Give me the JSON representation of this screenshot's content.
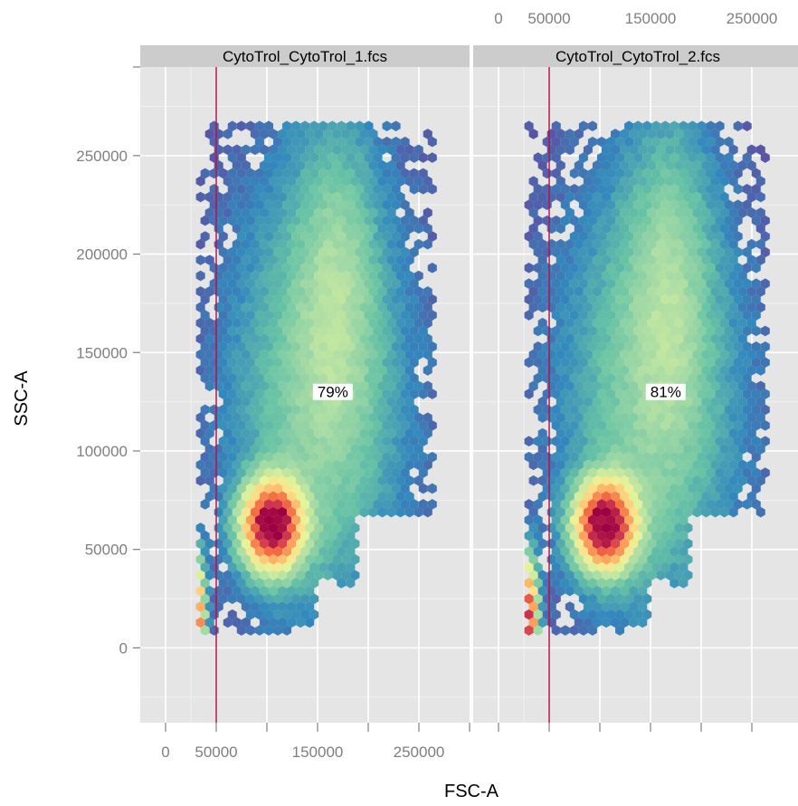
{
  "chart_data": {
    "type": "heatmap",
    "subtype": "hexbin",
    "x": "FSC-A",
    "xlabel": "FSC-A",
    "ylabel": "SSC-A",
    "xlim": [
      -25000,
      300000
    ],
    "ylim": [
      -38000,
      295000
    ],
    "xticks": [
      0,
      50000,
      150000,
      250000
    ],
    "xtick_labels": [
      "0",
      "50000",
      "150000",
      "250000"
    ],
    "yticks": [
      0,
      50000,
      100000,
      150000,
      200000,
      250000
    ],
    "ytick_labels": [
      "0",
      "50000",
      "100000",
      "150000",
      "200000",
      "250000"
    ],
    "grid": true,
    "colorscale": "spectral",
    "data_extent": {
      "x": [
        30000,
        265000
      ],
      "y": [
        5000,
        265000
      ]
    },
    "gate": {
      "type": "vertical-line",
      "x": 50000,
      "color": "#b5134b"
    },
    "panels": [
      {
        "title": "CytoTrol_CytoTrol_1.fcs",
        "gate_label": "79%",
        "label_position": {
          "x": 165000,
          "y": 130000
        },
        "populations": [
          {
            "name": "main",
            "center": [
              105000,
              62000
            ],
            "spread": [
              20000,
              15000
            ]
          },
          {
            "name": "debris",
            "center": [
              30000,
              15000
            ],
            "spread": [
              6000,
              20000
            ]
          }
        ]
      },
      {
        "title": "CytoTrol_CytoTrol_2.fcs",
        "gate_label": "81%",
        "label_position": {
          "x": 165000,
          "y": 130000
        },
        "populations": [
          {
            "name": "main",
            "center": [
              105000,
              62000
            ],
            "spread": [
              20000,
              15000
            ]
          },
          {
            "name": "debris",
            "center": [
              30000,
              15000
            ],
            "spread": [
              6000,
              20000
            ]
          }
        ]
      }
    ]
  }
}
